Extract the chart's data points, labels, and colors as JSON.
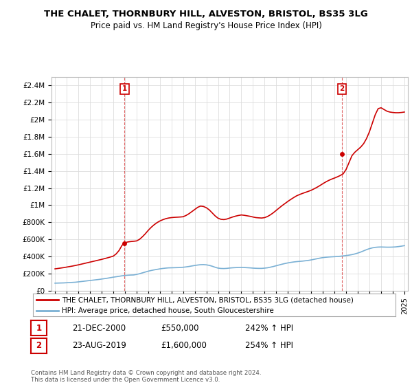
{
  "title": "THE CHALET, THORNBURY HILL, ALVESTON, BRISTOL, BS35 3LG",
  "subtitle": "Price paid vs. HM Land Registry's House Price Index (HPI)",
  "property_color": "#cc0000",
  "hpi_color": "#7ab0d4",
  "background_color": "#ffffff",
  "grid_color": "#dddddd",
  "sale1_year": 2000.97,
  "sale1_price": 550000,
  "sale2_year": 2019.65,
  "sale2_price": 1600000,
  "ylim": [
    0,
    2500000
  ],
  "yticks": [
    0,
    200000,
    400000,
    600000,
    800000,
    1000000,
    1200000,
    1400000,
    1600000,
    1800000,
    2000000,
    2200000,
    2400000
  ],
  "ytick_labels": [
    "£0",
    "£200K",
    "£400K",
    "£600K",
    "£800K",
    "£1M",
    "£1.2M",
    "£1.4M",
    "£1.6M",
    "£1.8M",
    "£2M",
    "£2.2M",
    "£2.4M"
  ],
  "legend_property": "THE CHALET, THORNBURY HILL, ALVESTON, BRISTOL, BS35 3LG (detached house)",
  "legend_hpi": "HPI: Average price, detached house, South Gloucestershire",
  "annotation1_label": "1",
  "annotation1_text": "21-DEC-2000",
  "annotation1_price": "£550,000",
  "annotation1_hpi": "242% ↑ HPI",
  "annotation2_label": "2",
  "annotation2_text": "23-AUG-2019",
  "annotation2_price": "£1,600,000",
  "annotation2_hpi": "254% ↑ HPI",
  "footer": "Contains HM Land Registry data © Crown copyright and database right 2024.\nThis data is licensed under the Open Government Licence v3.0.",
  "hpi_years": [
    1995.0,
    1995.25,
    1995.5,
    1995.75,
    1996.0,
    1996.25,
    1996.5,
    1996.75,
    1997.0,
    1997.25,
    1997.5,
    1997.75,
    1998.0,
    1998.25,
    1998.5,
    1998.75,
    1999.0,
    1999.25,
    1999.5,
    1999.75,
    2000.0,
    2000.25,
    2000.5,
    2000.75,
    2001.0,
    2001.25,
    2001.5,
    2001.75,
    2002.0,
    2002.25,
    2002.5,
    2002.75,
    2003.0,
    2003.25,
    2003.5,
    2003.75,
    2004.0,
    2004.25,
    2004.5,
    2004.75,
    2005.0,
    2005.25,
    2005.5,
    2005.75,
    2006.0,
    2006.25,
    2006.5,
    2006.75,
    2007.0,
    2007.25,
    2007.5,
    2007.75,
    2008.0,
    2008.25,
    2008.5,
    2008.75,
    2009.0,
    2009.25,
    2009.5,
    2009.75,
    2010.0,
    2010.25,
    2010.5,
    2010.75,
    2011.0,
    2011.25,
    2011.5,
    2011.75,
    2012.0,
    2012.25,
    2012.5,
    2012.75,
    2013.0,
    2013.25,
    2013.5,
    2013.75,
    2014.0,
    2014.25,
    2014.5,
    2014.75,
    2015.0,
    2015.25,
    2015.5,
    2015.75,
    2016.0,
    2016.25,
    2016.5,
    2016.75,
    2017.0,
    2017.25,
    2017.5,
    2017.75,
    2018.0,
    2018.25,
    2018.5,
    2018.75,
    2019.0,
    2019.25,
    2019.5,
    2019.75,
    2020.0,
    2020.25,
    2020.5,
    2020.75,
    2021.0,
    2021.25,
    2021.5,
    2021.75,
    2022.0,
    2022.25,
    2022.5,
    2022.75,
    2023.0,
    2023.25,
    2023.5,
    2023.75,
    2024.0,
    2024.25,
    2024.5,
    2024.75,
    2025.0
  ],
  "hpi_values": [
    88000,
    89000,
    90000,
    91000,
    93000,
    95000,
    97000,
    99000,
    103000,
    107000,
    111000,
    115000,
    119000,
    123000,
    127000,
    131000,
    136000,
    141000,
    146000,
    152000,
    158000,
    163000,
    168000,
    174000,
    178000,
    181000,
    183000,
    184000,
    190000,
    198000,
    208000,
    218000,
    228000,
    236000,
    243000,
    249000,
    255000,
    260000,
    264000,
    267000,
    268000,
    269000,
    270000,
    271000,
    274000,
    278000,
    283000,
    289000,
    295000,
    300000,
    304000,
    305000,
    302000,
    296000,
    286000,
    274000,
    264000,
    260000,
    259000,
    261000,
    265000,
    268000,
    270000,
    271000,
    272000,
    271000,
    269000,
    267000,
    264000,
    262000,
    261000,
    261000,
    264000,
    268000,
    275000,
    283000,
    292000,
    301000,
    310000,
    318000,
    325000,
    331000,
    336000,
    340000,
    343000,
    346000,
    350000,
    354000,
    360000,
    367000,
    374000,
    381000,
    387000,
    391000,
    394000,
    396000,
    398000,
    400000,
    403000,
    407000,
    411000,
    416000,
    422000,
    430000,
    440000,
    452000,
    466000,
    480000,
    492000,
    501000,
    507000,
    510000,
    511000,
    510000,
    509000,
    509000,
    510000,
    512000,
    516000,
    521000,
    527000
  ],
  "property_years": [
    1995.0,
    1995.25,
    1995.5,
    1995.75,
    1996.0,
    1996.25,
    1996.5,
    1996.75,
    1997.0,
    1997.25,
    1997.5,
    1997.75,
    1998.0,
    1998.25,
    1998.5,
    1998.75,
    1999.0,
    1999.25,
    1999.5,
    1999.75,
    2000.0,
    2000.25,
    2000.5,
    2000.75,
    2001.0,
    2001.25,
    2001.5,
    2001.75,
    2002.0,
    2002.25,
    2002.5,
    2002.75,
    2003.0,
    2003.25,
    2003.5,
    2003.75,
    2004.0,
    2004.25,
    2004.5,
    2004.75,
    2005.0,
    2005.25,
    2005.5,
    2005.75,
    2006.0,
    2006.25,
    2006.5,
    2006.75,
    2007.0,
    2007.25,
    2007.5,
    2007.75,
    2008.0,
    2008.25,
    2008.5,
    2008.75,
    2009.0,
    2009.25,
    2009.5,
    2009.75,
    2010.0,
    2010.25,
    2010.5,
    2010.75,
    2011.0,
    2011.25,
    2011.5,
    2011.75,
    2012.0,
    2012.25,
    2012.5,
    2012.75,
    2013.0,
    2013.25,
    2013.5,
    2013.75,
    2014.0,
    2014.25,
    2014.5,
    2014.75,
    2015.0,
    2015.25,
    2015.5,
    2015.75,
    2016.0,
    2016.25,
    2016.5,
    2016.75,
    2017.0,
    2017.25,
    2017.5,
    2017.75,
    2018.0,
    2018.25,
    2018.5,
    2018.75,
    2019.0,
    2019.25,
    2019.5,
    2019.75,
    2020.0,
    2020.25,
    2020.5,
    2020.75,
    2021.0,
    2021.25,
    2021.5,
    2021.75,
    2022.0,
    2022.25,
    2022.5,
    2022.75,
    2023.0,
    2023.25,
    2023.5,
    2023.75,
    2024.0,
    2024.25,
    2024.5,
    2024.75,
    2025.0
  ],
  "property_values": [
    255000,
    260000,
    265000,
    270000,
    276000,
    282000,
    288000,
    295000,
    302000,
    310000,
    318000,
    326000,
    334000,
    342000,
    350000,
    358000,
    366000,
    375000,
    384000,
    394000,
    404000,
    430000,
    470000,
    530000,
    560000,
    570000,
    575000,
    578000,
    582000,
    600000,
    630000,
    665000,
    705000,
    740000,
    770000,
    795000,
    815000,
    830000,
    842000,
    850000,
    855000,
    858000,
    860000,
    862000,
    865000,
    880000,
    900000,
    925000,
    950000,
    975000,
    990000,
    985000,
    970000,
    945000,
    910000,
    875000,
    848000,
    835000,
    832000,
    838000,
    850000,
    862000,
    872000,
    880000,
    886000,
    882000,
    876000,
    870000,
    862000,
    855000,
    852000,
    850000,
    855000,
    868000,
    888000,
    912000,
    940000,
    968000,
    995000,
    1020000,
    1045000,
    1068000,
    1090000,
    1110000,
    1125000,
    1138000,
    1150000,
    1162000,
    1175000,
    1192000,
    1210000,
    1230000,
    1252000,
    1272000,
    1290000,
    1305000,
    1318000,
    1332000,
    1348000,
    1368000,
    1420000,
    1500000,
    1580000,
    1620000,
    1650000,
    1680000,
    1720000,
    1780000,
    1860000,
    1960000,
    2060000,
    2130000,
    2140000,
    2120000,
    2100000,
    2090000,
    2085000,
    2082000,
    2082000,
    2085000,
    2090000
  ]
}
